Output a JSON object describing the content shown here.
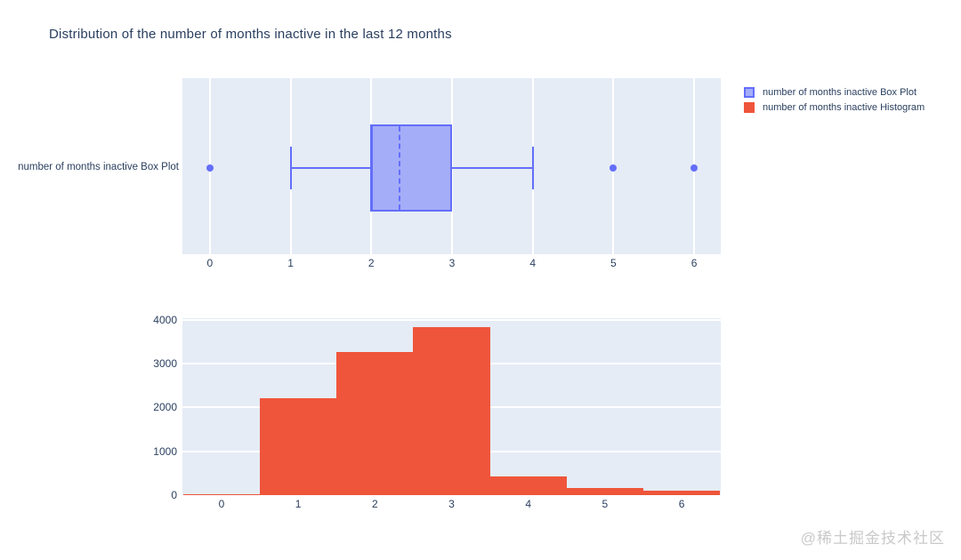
{
  "title": "Distribution of the number of months inactive in the last 12 months",
  "watermark": "@稀土掘金技术社区",
  "colors": {
    "box_line": "#636EFA",
    "box_fill": "#A4ADF8",
    "histogram": "#EF553B",
    "plot_background": "#E5ECF6",
    "text": "#2a3f5f",
    "gridline": "#FFFFFF"
  },
  "legend": {
    "items": [
      {
        "label": "number of months inactive Box Plot",
        "type": "box"
      },
      {
        "label": "number of months inactive Histogram",
        "type": "histogram"
      }
    ]
  },
  "chart_data": [
    {
      "type": "box",
      "orientation": "horizontal",
      "name": "number of months inactive Box Plot",
      "ylabel": "number of months inactive Box Plot",
      "min_whisker": 1,
      "q1": 2,
      "median": 2,
      "q3": 3,
      "max_whisker": 4,
      "mean": 2.35,
      "outliers": [
        0,
        5,
        6
      ],
      "x_ticks": [
        0,
        1,
        2,
        3,
        4,
        5,
        6
      ],
      "xlim": [
        -0.34,
        6.33
      ],
      "grid": "vertical-only"
    },
    {
      "type": "bar",
      "subtype": "histogram",
      "name": "number of months inactive Histogram",
      "categories": [
        0,
        1,
        2,
        3,
        4,
        5,
        6
      ],
      "values": [
        30,
        2220,
        3270,
        3840,
        430,
        160,
        110
      ],
      "bar_width": 1,
      "x_ticks": [
        0,
        1,
        2,
        3,
        4,
        5,
        6
      ],
      "y_ticks": [
        0,
        1000,
        2000,
        3000,
        4000
      ],
      "xlim": [
        -0.51,
        6.51
      ],
      "ylim": [
        0,
        4040
      ],
      "grid": "horizontal-only"
    }
  ]
}
